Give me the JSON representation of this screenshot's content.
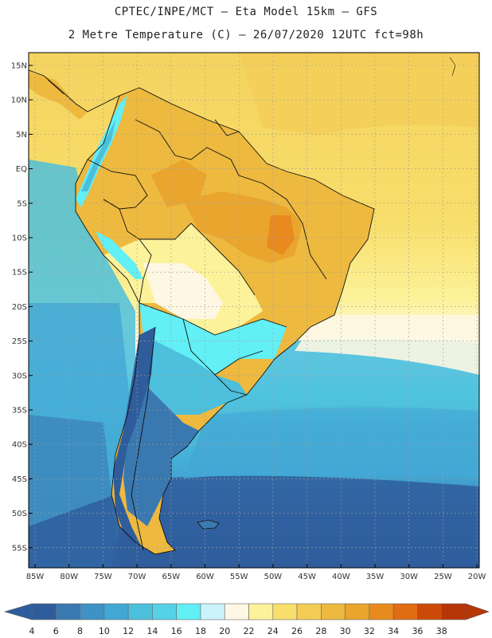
{
  "header": {
    "line1": "CPTEC/INPE/MCT –  Eta Model 15km – GFS",
    "line2": "2 Metre Temperature (C) – 26/07/2020 12UTC fct=98h"
  },
  "axes": {
    "lat_labels": [
      "15N",
      "10N",
      "5N",
      "EQ",
      "5S",
      "10S",
      "15S",
      "20S",
      "25S",
      "30S",
      "35S",
      "40S",
      "45S",
      "50S",
      "55S"
    ],
    "lon_labels": [
      "85W",
      "80W",
      "75W",
      "70W",
      "65W",
      "60W",
      "55W",
      "50W",
      "45W",
      "40W",
      "35W",
      "30W",
      "25W",
      "20W"
    ]
  },
  "legend": {
    "values": [
      "4",
      "6",
      "8",
      "10",
      "12",
      "14",
      "16",
      "18",
      "20",
      "22",
      "24",
      "26",
      "28",
      "30",
      "32",
      "34",
      "36",
      "38"
    ],
    "colors": [
      "#2f5d9c",
      "#3a78b0",
      "#3f92c6",
      "#43a7d4",
      "#4cbfdc",
      "#55d2e6",
      "#62eff6",
      "#cbf3fb",
      "#fdf7e3",
      "#fcf29a",
      "#f8de6b",
      "#f3cc55",
      "#edb93f",
      "#e9a52e",
      "#e98a1f",
      "#e06d12",
      "#cc4a08",
      "#b73607"
    ]
  },
  "map": {
    "land_border_color": "#111111",
    "grid_color": "#9e9e9e"
  }
}
